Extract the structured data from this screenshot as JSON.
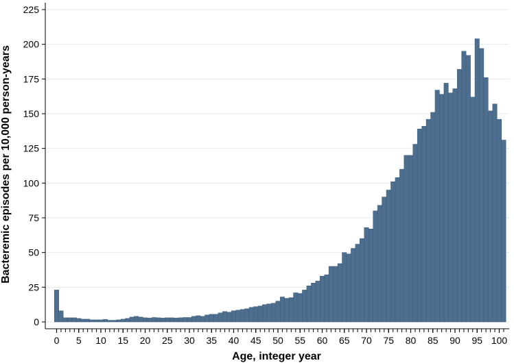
{
  "chart_data": {
    "type": "bar",
    "title": "",
    "xlabel": "Age, integer year",
    "ylabel": "Bacteremic episodes per 10,000 person-years",
    "x": [
      0,
      1,
      2,
      3,
      4,
      5,
      6,
      7,
      8,
      9,
      10,
      11,
      12,
      13,
      14,
      15,
      16,
      17,
      18,
      19,
      20,
      21,
      22,
      23,
      24,
      25,
      26,
      27,
      28,
      29,
      30,
      31,
      32,
      33,
      34,
      35,
      36,
      37,
      38,
      39,
      40,
      41,
      42,
      43,
      44,
      45,
      46,
      47,
      48,
      49,
      50,
      51,
      52,
      53,
      54,
      55,
      56,
      57,
      58,
      59,
      60,
      61,
      62,
      63,
      64,
      65,
      66,
      67,
      68,
      69,
      70,
      71,
      72,
      73,
      74,
      75,
      76,
      77,
      78,
      79,
      80,
      81,
      82,
      83,
      84,
      85,
      86,
      87,
      88,
      89,
      90,
      91,
      92,
      93,
      94,
      95,
      96,
      97,
      98,
      99,
      100,
      101
    ],
    "values": [
      23,
      8,
      3,
      3,
      3,
      2.5,
      2,
      2,
      1.5,
      1.5,
      1.5,
      1.8,
      1.2,
      1.2,
      1.5,
      2,
      2.5,
      3.5,
      4,
      3.5,
      3,
      2.8,
      3.2,
      3,
      2.8,
      3,
      3,
      2.8,
      3,
      3.2,
      3.2,
      4,
      4.5,
      4,
      5,
      5.5,
      5.5,
      6.5,
      7.5,
      7,
      8,
      8.5,
      9,
      9.5,
      10.5,
      11,
      11.5,
      12.5,
      13,
      13.5,
      15,
      18,
      17,
      17.5,
      21,
      20.5,
      23,
      26,
      28,
      29.5,
      33,
      34,
      40,
      40,
      42,
      50,
      49,
      53,
      56,
      60,
      68,
      67,
      80,
      84,
      90,
      95,
      101,
      104,
      110,
      120,
      120,
      128,
      139,
      141,
      146,
      151,
      167,
      164,
      172,
      165,
      168,
      182,
      195,
      192,
      162,
      204,
      197,
      176,
      152,
      157,
      146,
      131
    ],
    "ylim": [
      0,
      225
    ],
    "yticks": [
      "0",
      "25",
      "50",
      "75",
      "100",
      "125",
      "150",
      "175",
      "200",
      "225"
    ],
    "xticks": [
      "0",
      "5",
      "10",
      "15",
      "20",
      "25",
      "30",
      "35",
      "40",
      "45",
      "50",
      "55",
      "60",
      "65",
      "70",
      "75",
      "80",
      "85",
      "90",
      "95",
      "100"
    ],
    "grid": true,
    "legend": "none",
    "colors": {
      "bar_fill": "#4d6e8f",
      "bar_edge": "#3e5b78",
      "grid": "#e3ebf1",
      "axis": "#000000"
    }
  }
}
